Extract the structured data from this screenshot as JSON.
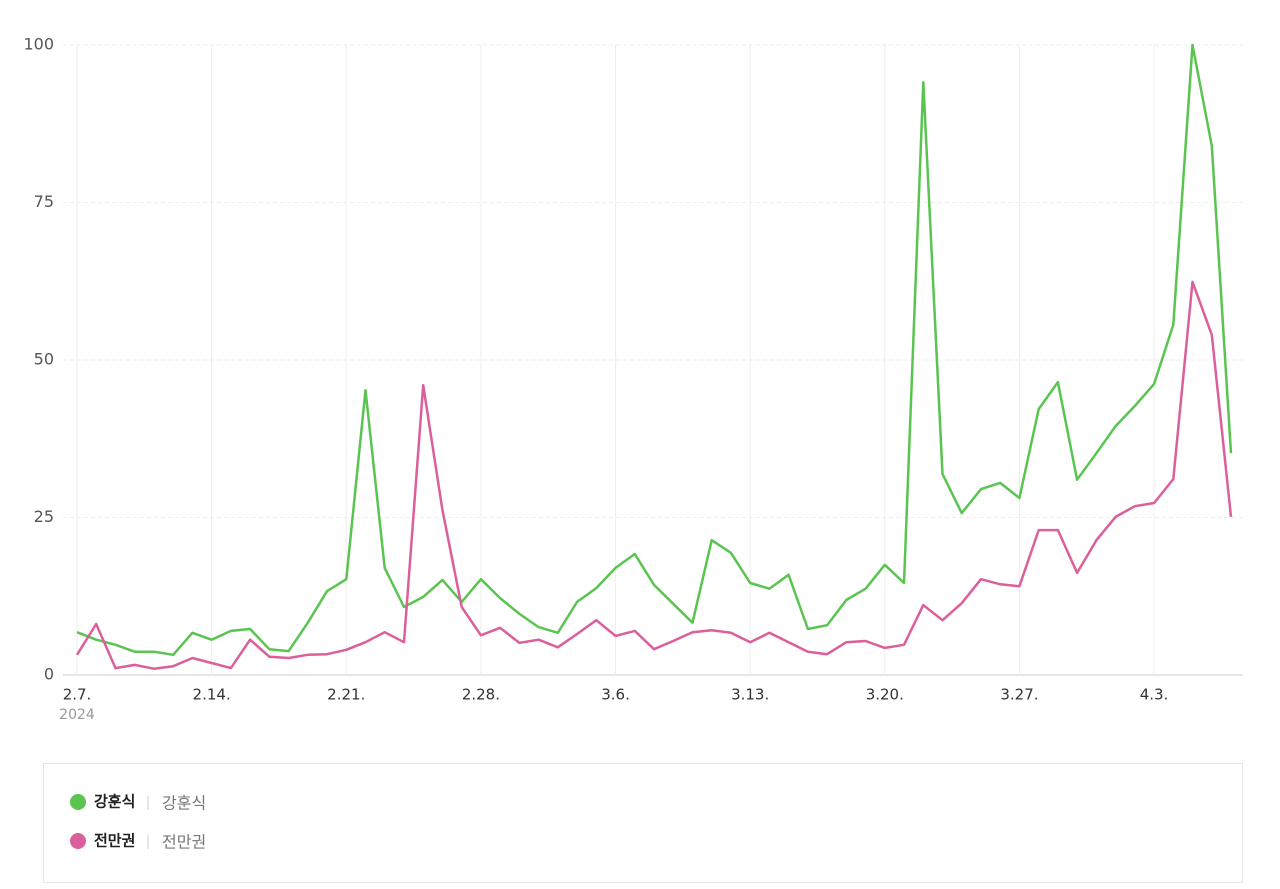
{
  "chart_data": {
    "type": "line",
    "categories": [
      "2.7.",
      null,
      null,
      null,
      null,
      null,
      null,
      "2.14.",
      null,
      null,
      null,
      null,
      null,
      null,
      "2.21.",
      null,
      null,
      null,
      null,
      null,
      null,
      "2.28.",
      null,
      null,
      null,
      null,
      null,
      null,
      "3.6.",
      null,
      null,
      null,
      null,
      null,
      null,
      "3.13.",
      null,
      null,
      null,
      null,
      null,
      null,
      "3.20.",
      null,
      null,
      null,
      null,
      null,
      null,
      "3.27.",
      null,
      null,
      null,
      null,
      null,
      null,
      "4.3.",
      null,
      null,
      null,
      null
    ],
    "year_label": "2024",
    "series": [
      {
        "name": "강훈식",
        "keyword": "강훈식",
        "color": "#5ac451",
        "values": [
          6.8,
          5.6,
          4.8,
          3.7,
          3.7,
          3.2,
          6.7,
          5.6,
          7.0,
          7.3,
          4.1,
          3.8,
          8.3,
          13.3,
          15.2,
          45.2,
          17.0,
          10.8,
          12.4,
          15.1,
          11.6,
          15.2,
          12.2,
          9.7,
          7.6,
          6.7,
          11.6,
          13.8,
          17.0,
          19.2,
          14.3,
          11.3,
          8.3,
          21.4,
          19.4,
          14.6,
          13.7,
          15.9,
          7.3,
          7.9,
          11.9,
          13.7,
          17.5,
          14.6,
          94.1,
          31.9,
          25.7,
          29.5,
          30.5,
          28.1,
          42.2,
          46.5,
          31.0,
          35.2,
          39.5,
          42.7,
          46.2,
          55.6,
          100,
          84.0,
          35.2
        ]
      },
      {
        "name": "전만권",
        "keyword": "전만권",
        "color": "#db5f9a",
        "values": [
          3.2,
          8.1,
          1.1,
          1.6,
          1.0,
          1.4,
          2.7,
          1.9,
          1.1,
          5.6,
          2.9,
          2.7,
          3.2,
          3.3,
          4.0,
          5.2,
          6.8,
          5.2,
          46.0,
          26.2,
          10.8,
          6.3,
          7.5,
          5.1,
          5.6,
          4.4,
          6.5,
          8.7,
          6.2,
          7.0,
          4.1,
          5.4,
          6.8,
          7.1,
          6.7,
          5.2,
          6.7,
          5.2,
          3.7,
          3.3,
          5.2,
          5.4,
          4.3,
          4.8,
          11.1,
          8.7,
          11.4,
          15.2,
          14.4,
          14.1,
          23.0,
          23.0,
          16.2,
          21.4,
          25.1,
          26.8,
          27.3,
          31.1,
          62.4,
          54.0,
          25.1
        ]
      }
    ],
    "ylim": [
      0,
      100
    ],
    "yticks": [
      0,
      25,
      50,
      75,
      100
    ],
    "grid": true
  }
}
